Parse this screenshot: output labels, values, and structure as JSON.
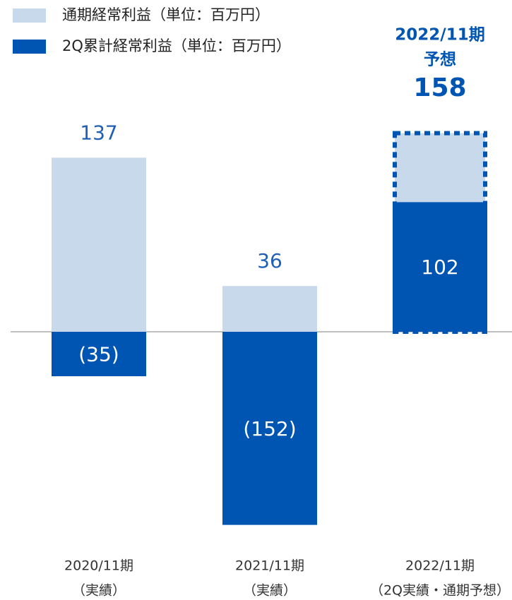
{
  "chart_data": {
    "type": "bar",
    "categories": [
      [
        "2020/11期",
        "（実績）"
      ],
      [
        "2021/11期",
        "（実績）"
      ],
      [
        "2022/11期",
        "（2Q実績・通期予想）"
      ]
    ],
    "series": [
      {
        "name": "通期経常利益（単位：百万円）",
        "color": "#c9d9ec",
        "values": [
          137,
          36,
          158
        ],
        "dashed": [
          false,
          false,
          true
        ],
        "label_color": "#1f5fb4"
      },
      {
        "name": "2Q累計経常利益（単位：百万円）",
        "color": "#0055b3",
        "values": [
          -35,
          -152,
          102
        ],
        "value_labels": [
          "(35)",
          "(152)",
          "102"
        ],
        "label_color": "#ffffff"
      }
    ],
    "annotation": [
      "2022/11期",
      "予想"
    ]
  }
}
